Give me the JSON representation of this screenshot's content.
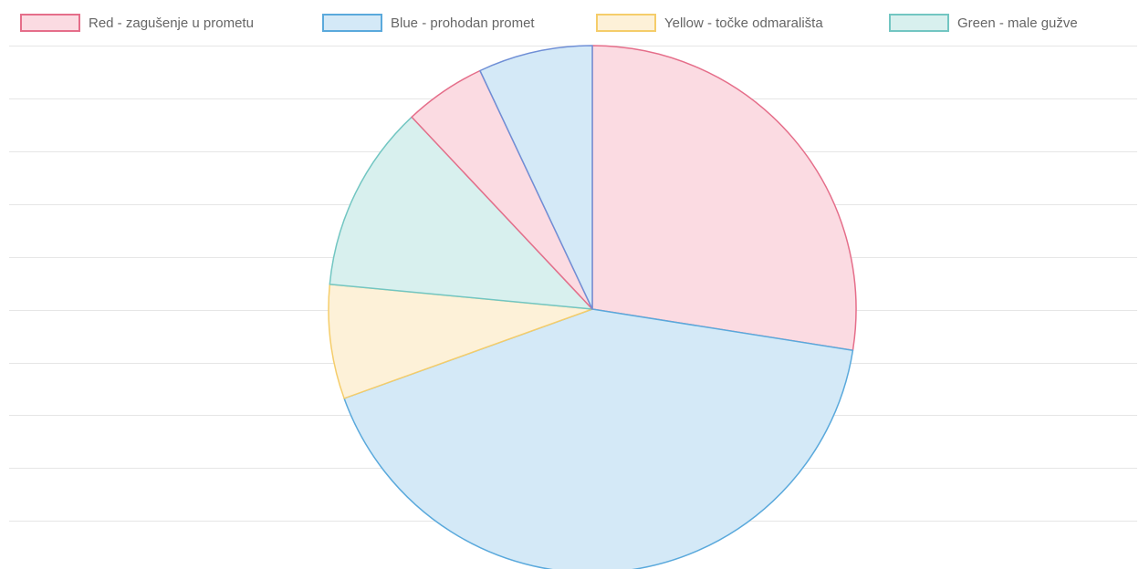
{
  "chart_data": {
    "type": "pie",
    "title": "",
    "grid": true,
    "legend_position": "top",
    "legend": [
      {
        "label": "Red - zagušenje u prometu",
        "background": "#fbdbe2",
        "border": "#e56e8a"
      },
      {
        "label": "Blue - prohodan promet",
        "background": "#d4e9f7",
        "border": "#5aa9dc"
      },
      {
        "label": "Yellow - točke odmarališta",
        "background": "#fdf1d8",
        "border": "#f5cd6a"
      },
      {
        "label": "Green - male gužve",
        "background": "#d8f0ee",
        "border": "#72c6c2"
      }
    ],
    "slices": [
      {
        "category": "Red - zagušenje u prometu",
        "value": 27.5,
        "background": "#fbdbe2",
        "border": "#e56e8a"
      },
      {
        "category": "Blue - prohodan promet",
        "value": 42.0,
        "background": "#d4e9f7",
        "border": "#5aa9dc"
      },
      {
        "category": "Yellow - točke odmarališta",
        "value": 7.0,
        "background": "#fdf1d8",
        "border": "#f5cd6a"
      },
      {
        "category": "Green - male gužve",
        "value": 11.5,
        "background": "#d8f0ee",
        "border": "#72c6c2"
      },
      {
        "category": "Red - zagušenje u prometu",
        "value": 5.0,
        "background": "#fbdbe2",
        "border": "#e56e8a"
      },
      {
        "category": "Blue - prohodan promet",
        "value": 7.0,
        "background": "#d4e9f7",
        "border": "#6f8fd6"
      }
    ],
    "gridline_color": "#e6e6e6"
  }
}
